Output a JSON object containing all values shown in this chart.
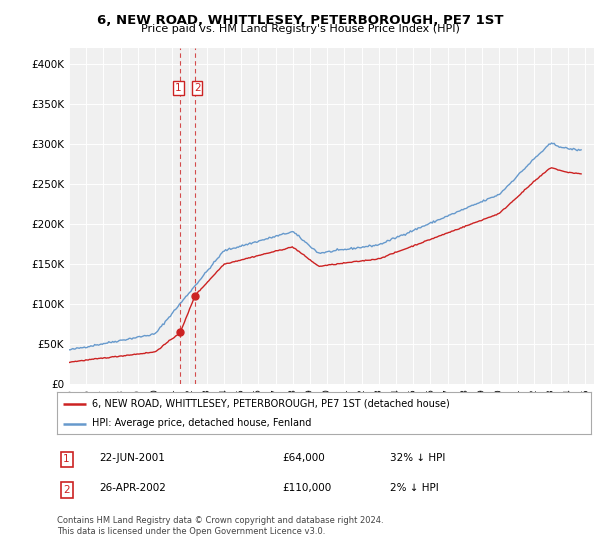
{
  "title": "6, NEW ROAD, WHITTLESEY, PETERBOROUGH, PE7 1ST",
  "subtitle": "Price paid vs. HM Land Registry's House Price Index (HPI)",
  "legend_line1": "6, NEW ROAD, WHITTLESEY, PETERBOROUGH, PE7 1ST (detached house)",
  "legend_line2": "HPI: Average price, detached house, Fenland",
  "table": [
    {
      "num": "1",
      "date": "22-JUN-2001",
      "price": "£64,000",
      "hpi": "32% ↓ HPI"
    },
    {
      "num": "2",
      "date": "26-APR-2002",
      "price": "£110,000",
      "hpi": "2% ↓ HPI"
    }
  ],
  "footnote1": "Contains HM Land Registry data © Crown copyright and database right 2024.",
  "footnote2": "This data is licensed under the Open Government Licence v3.0.",
  "sale1_date": 2001.472,
  "sale1_price": 64000,
  "sale2_date": 2002.32,
  "sale2_price": 110000,
  "hpi_color": "#6699cc",
  "price_color": "#cc2222",
  "vline_color": "#cc2222",
  "ylim_max": 420000,
  "xlim_left": 1995.0,
  "xlim_right": 2025.5,
  "background_color": "#ffffff",
  "plot_bg_color": "#f0f0f0",
  "grid_color": "#ffffff",
  "yticks": [
    0,
    50000,
    100000,
    150000,
    200000,
    250000,
    300000,
    350000,
    400000
  ],
  "ytick_labels": [
    "£0",
    "£50K",
    "£100K",
    "£150K",
    "£200K",
    "£250K",
    "£300K",
    "£350K",
    "£400K"
  ],
  "xticks": [
    1995,
    1996,
    1997,
    1998,
    1999,
    2000,
    2001,
    2002,
    2003,
    2004,
    2005,
    2006,
    2007,
    2008,
    2009,
    2010,
    2011,
    2012,
    2013,
    2014,
    2015,
    2016,
    2017,
    2018,
    2019,
    2020,
    2021,
    2022,
    2023,
    2024,
    2025
  ]
}
